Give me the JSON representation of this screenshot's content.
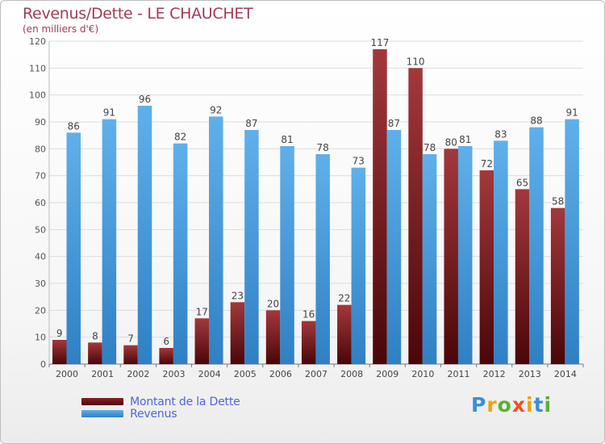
{
  "chart_data": {
    "type": "bar",
    "title": "Revenus/Dette - LE CHAUCHET",
    "subtitle": "(en milliers d'€)",
    "categories": [
      "2000",
      "2001",
      "2002",
      "2003",
      "2004",
      "2005",
      "2006",
      "2007",
      "2008",
      "2009",
      "2010",
      "2011",
      "2012",
      "2013",
      "2014"
    ],
    "series": [
      {
        "name": "Montant de la Dette",
        "color": "#7b1a1f",
        "values": [
          9,
          8,
          7,
          6,
          17,
          23,
          20,
          16,
          22,
          117,
          110,
          80,
          72,
          65,
          58
        ]
      },
      {
        "name": "Revenus",
        "color": "#4ba3e0",
        "values": [
          86,
          91,
          96,
          82,
          92,
          87,
          81,
          78,
          73,
          87,
          78,
          81,
          83,
          88,
          91
        ]
      }
    ],
    "ylim": [
      0,
      120
    ],
    "yticks": [
      0,
      10,
      20,
      30,
      40,
      50,
      60,
      70,
      80,
      90,
      100,
      110,
      120
    ],
    "grid": true,
    "legend": "bottom-left"
  },
  "logo": {
    "letters": [
      "P",
      "r",
      "o",
      "x",
      "i",
      "t",
      "i"
    ],
    "colors": [
      "#3a8fd8",
      "#f0a30a",
      "#5ab031",
      "#e8541e",
      "#f0a30a",
      "#3a8fd8",
      "#5ab031"
    ]
  }
}
